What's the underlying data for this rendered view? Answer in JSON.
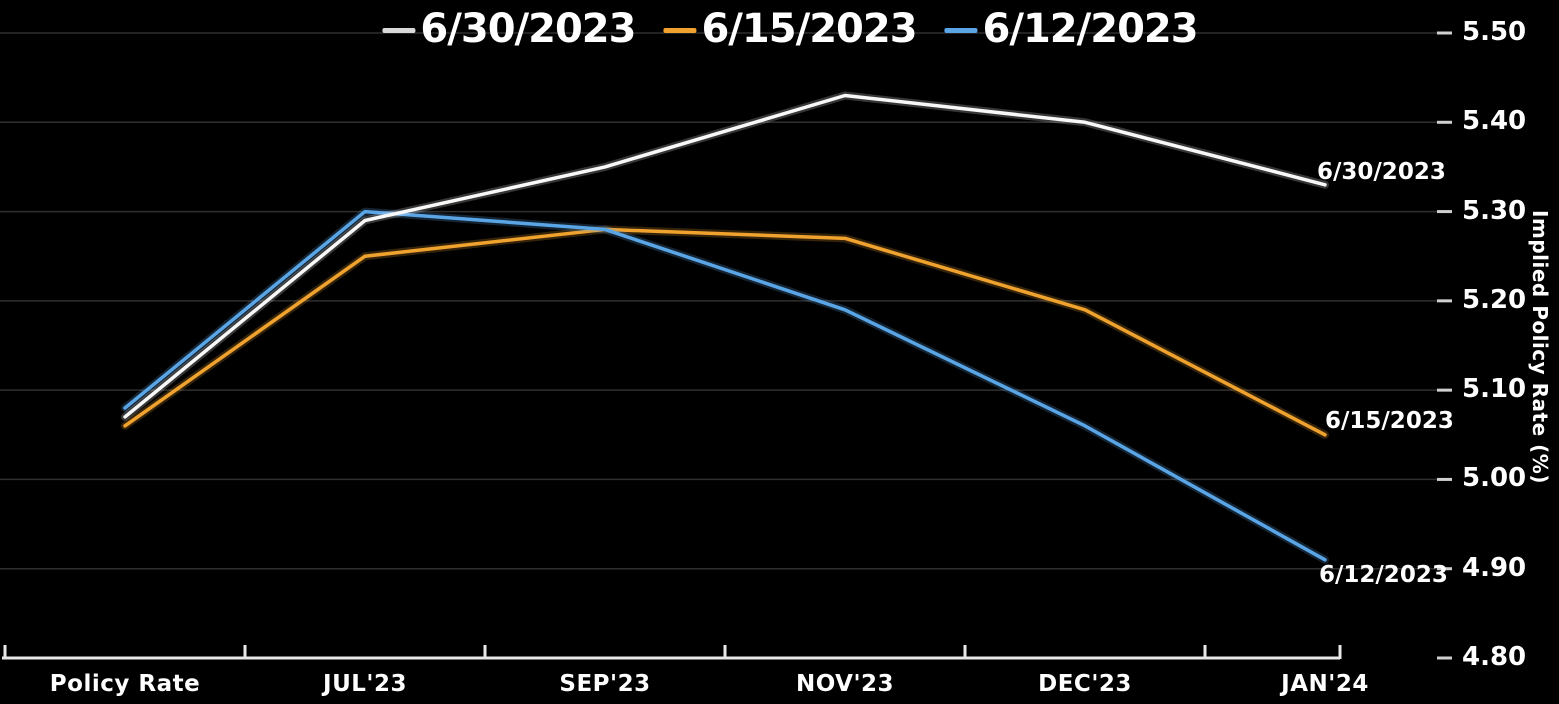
{
  "chart_data": {
    "type": "line",
    "title": "",
    "categories": [
      "Policy Rate",
      "JUL'23",
      "SEP'23",
      "NOV'23",
      "DEC'23",
      "JAN'24"
    ],
    "series": [
      {
        "name": "6/30/2023",
        "color": "#f8f8f8",
        "legend_dash": "#d9d9d9",
        "values": [
          5.07,
          5.29,
          5.35,
          5.43,
          5.4,
          5.33
        ]
      },
      {
        "name": "6/15/2023",
        "color": "#f0a22e",
        "legend_dash": "#f0a22e",
        "values": [
          5.06,
          5.25,
          5.28,
          5.27,
          5.19,
          5.05
        ]
      },
      {
        "name": "6/12/2023",
        "color": "#5aa5e6",
        "legend_dash": "#5aa5e6",
        "values": [
          5.08,
          5.3,
          5.28,
          5.19,
          5.06,
          4.91
        ]
      }
    ],
    "xlabel": "",
    "ylabel": "Implied Policy Rate (%)",
    "ylim": [
      4.8,
      5.5
    ],
    "yticks": [
      "5.50",
      "5.40",
      "5.30",
      "5.20",
      "5.10",
      "5.00",
      "4.90",
      "4.80"
    ],
    "ytick_values": [
      5.5,
      5.4,
      5.3,
      5.2,
      5.1,
      5.0,
      4.9,
      4.8
    ],
    "legend_position": "top",
    "grid": true
  },
  "colors": {
    "background": "#000000",
    "gridline": "#2f2f2f",
    "axis": "#e8e8e8",
    "right_tick": "#d0d0d0",
    "text": "#ffffff"
  }
}
